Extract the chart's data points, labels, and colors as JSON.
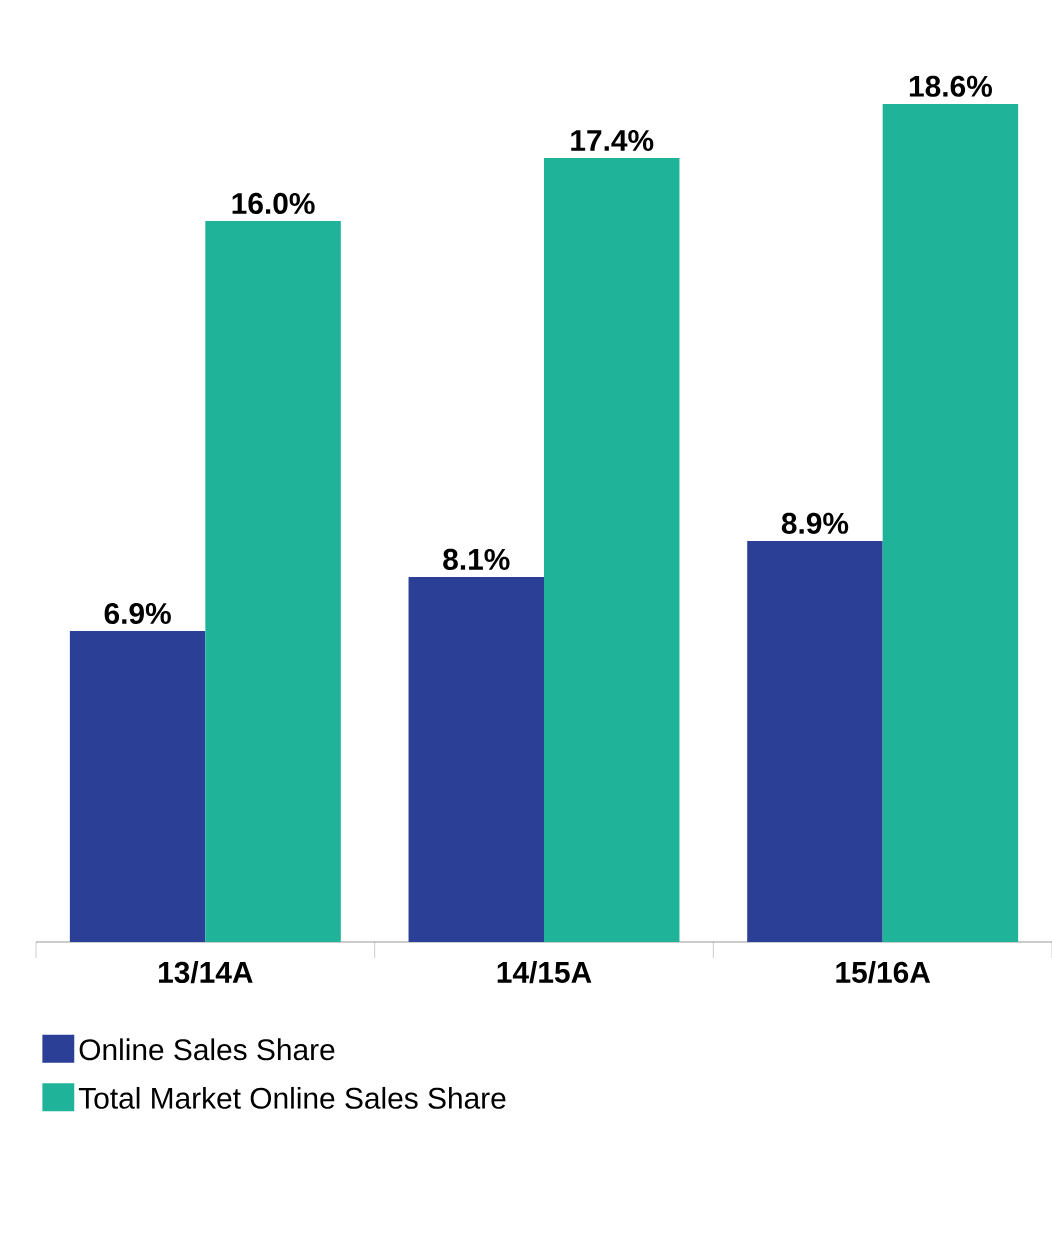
{
  "chart_data": {
    "type": "bar",
    "categories": [
      "13/14A",
      "14/15A",
      "15/16A"
    ],
    "series": [
      {
        "name": "Online Sales Share",
        "color": "#2b3f96",
        "values": [
          6.9,
          8.1,
          8.9
        ],
        "value_labels": [
          "6.9%",
          "8.1%",
          "8.9%"
        ]
      },
      {
        "name": "Total Market Online Sales Share",
        "color": "#1fb49a",
        "values": [
          16.0,
          17.4,
          18.6
        ],
        "value_labels": [
          "16.0%",
          "17.4%",
          "18.6%"
        ]
      }
    ],
    "legend": "bottom"
  }
}
